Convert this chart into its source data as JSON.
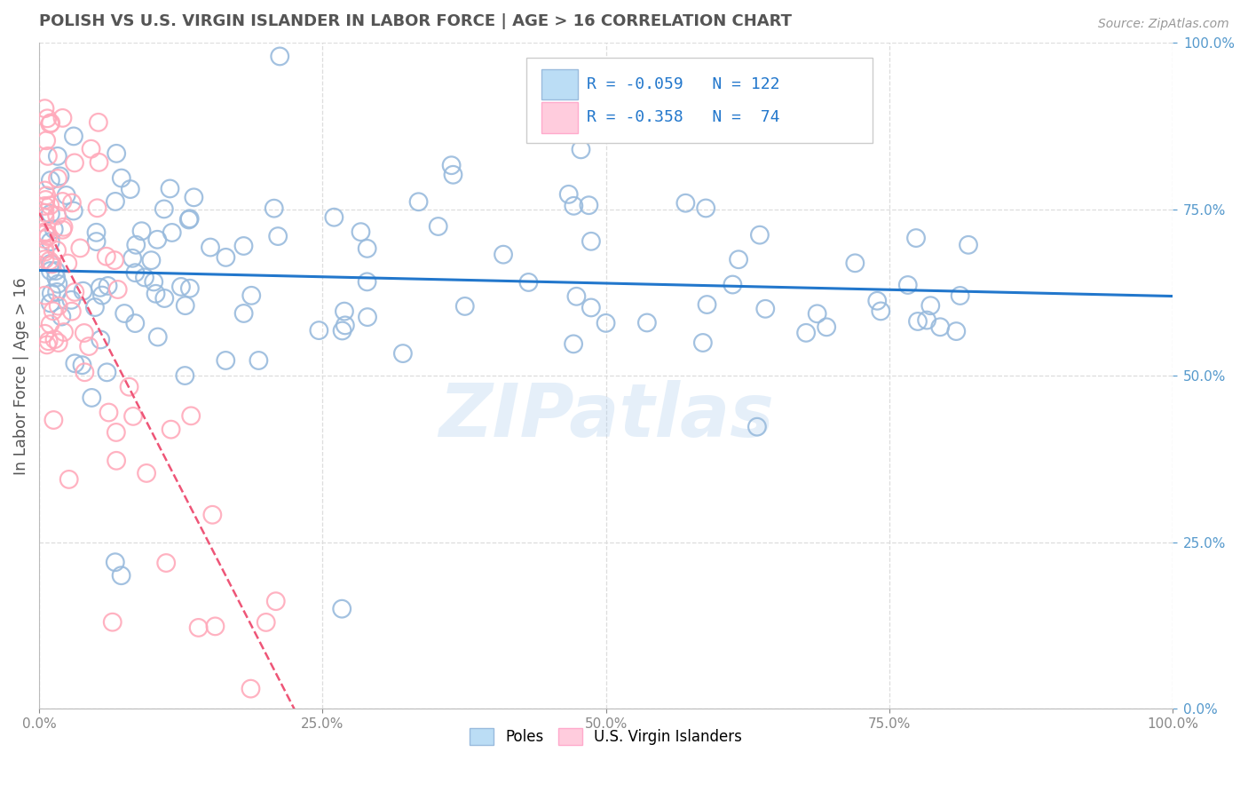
{
  "title": "POLISH VS U.S. VIRGIN ISLANDER IN LABOR FORCE | AGE > 16 CORRELATION CHART",
  "source": "Source: ZipAtlas.com",
  "ylabel": "In Labor Force | Age > 16",
  "xlim": [
    0.0,
    1.0
  ],
  "ylim": [
    0.0,
    1.0
  ],
  "blue_R": "-0.059",
  "blue_N": "122",
  "pink_R": "-0.358",
  "pink_N": "74",
  "blue_scatter_color": "#99BBDD",
  "pink_scatter_color": "#FFAABB",
  "blue_line_color": "#2277CC",
  "pink_line_color": "#EE5577",
  "pink_line_dash": true,
  "background_color": "#FFFFFF",
  "grid_color": "#DDDDDD",
  "watermark": "ZIPatlas",
  "tick_color": "#5599CC",
  "title_color": "#555555",
  "ylabel_color": "#555555"
}
